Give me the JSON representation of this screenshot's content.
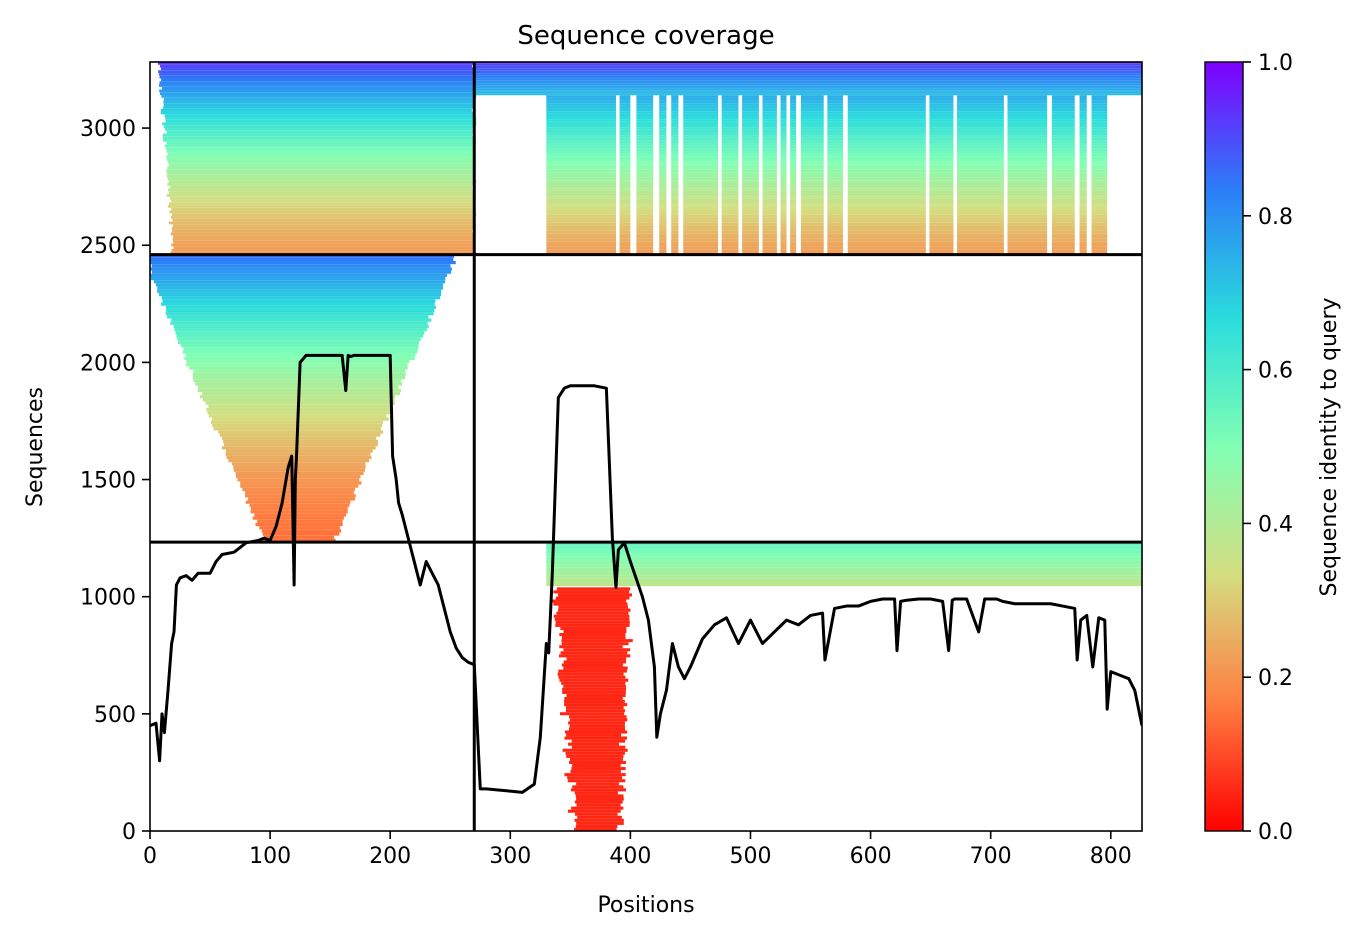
{
  "chart_data": {
    "type": "heatmap",
    "title": "Sequence coverage",
    "xlabel": "Positions",
    "ylabel": "Sequences",
    "xlim": [
      0,
      826
    ],
    "ylim": [
      0,
      3282
    ],
    "x_ticks": [
      0,
      100,
      200,
      300,
      400,
      500,
      600,
      700,
      800
    ],
    "y_ticks": [
      0,
      500,
      1000,
      1500,
      2000,
      2500,
      3000
    ],
    "grid": false,
    "colorbar": {
      "label": "Sequence identity to query",
      "range": [
        0,
        1
      ],
      "ticks": [
        "0.0",
        "0.2",
        "0.4",
        "0.6",
        "0.8",
        "1.0"
      ],
      "colormap": "rainbow_r",
      "stops": [
        "#ff0000",
        "#ff7e41",
        "#d4dd80",
        "#80ffb4",
        "#2adcdd",
        "#2c7ef7",
        "#8000ff"
      ]
    },
    "chain_boundaries_x": [
      270
    ],
    "block_boundaries_y": [
      1233,
      2460
    ],
    "blocks": [
      {
        "name": "block-a",
        "y_range": [
          2460,
          3282
        ],
        "segments": [
          [
            0,
            270
          ],
          [
            270,
            826
          ]
        ],
        "identity_top": 0.92,
        "identity_bottom": 0.22,
        "coverage_envelope": [
          [
            0,
            10
          ],
          [
            270,
            826
          ]
        ],
        "gaps_x": [
          [
            270,
            330
          ],
          [
            388,
            391
          ],
          [
            400,
            405
          ],
          [
            419,
            424
          ],
          [
            430,
            434
          ],
          [
            440,
            444
          ],
          [
            473,
            476
          ],
          [
            490,
            493
          ],
          [
            507,
            510
          ],
          [
            522,
            525
          ],
          [
            530,
            533
          ],
          [
            538,
            542
          ],
          [
            561,
            564
          ],
          [
            577,
            581
          ],
          [
            646,
            649
          ],
          [
            669,
            672
          ],
          [
            711,
            714
          ],
          [
            747,
            751
          ],
          [
            770,
            774
          ],
          [
            780,
            784
          ],
          [
            797,
            826
          ]
        ]
      },
      {
        "name": "block-b",
        "y_range": [
          1233,
          2460
        ],
        "segments": [
          [
            0,
            270
          ]
        ],
        "identity_top": 0.85,
        "identity_bottom": 0.15,
        "coverage_envelope": [
          [
            0,
            270
          ]
        ]
      },
      {
        "name": "block-c",
        "y_range": [
          0,
          1233
        ],
        "segments": [
          [
            270,
            826
          ]
        ],
        "identity_top_region": {
          "y_range": [
            1045,
            1233
          ],
          "x_range": [
            330,
            826
          ],
          "identity_top": 0.55,
          "identity_bottom": 0.38
        },
        "identity_low_region": {
          "y_range": [
            0,
            1040
          ],
          "x_range": [
            330,
            410
          ],
          "identity": 0.05
        }
      }
    ],
    "coverage_line": {
      "x": [
        0,
        5,
        8,
        10,
        12,
        15,
        18,
        20,
        22,
        25,
        30,
        35,
        40,
        45,
        50,
        55,
        60,
        70,
        80,
        90,
        95,
        100,
        105,
        110,
        115,
        118,
        120,
        121,
        122,
        125,
        130,
        140,
        150,
        160,
        163,
        165,
        167,
        170,
        180,
        190,
        200,
        202,
        205,
        207,
        210,
        215,
        220,
        225,
        230,
        235,
        240,
        245,
        250,
        255,
        260,
        265,
        270,
        275,
        280,
        290,
        300,
        310,
        320,
        325,
        330,
        332,
        335,
        340,
        345,
        350,
        360,
        370,
        380,
        385,
        388,
        390,
        395,
        400,
        410,
        415,
        420,
        422,
        425,
        430,
        435,
        440,
        445,
        450,
        460,
        470,
        480,
        490,
        500,
        510,
        520,
        530,
        540,
        550,
        560,
        562,
        570,
        580,
        590,
        600,
        610,
        620,
        622,
        625,
        630,
        640,
        650,
        660,
        665,
        668,
        670,
        680,
        690,
        695,
        700,
        705,
        710,
        720,
        730,
        740,
        750,
        760,
        770,
        772,
        775,
        780,
        785,
        790,
        795,
        797,
        800,
        805,
        810,
        815,
        820,
        826
      ],
      "y": [
        450,
        460,
        300,
        500,
        420,
        600,
        800,
        850,
        1050,
        1080,
        1090,
        1070,
        1100,
        1100,
        1100,
        1150,
        1180,
        1190,
        1230,
        1240,
        1250,
        1240,
        1300,
        1400,
        1550,
        1600,
        1050,
        1500,
        1600,
        2000,
        2030,
        2030,
        2030,
        2030,
        1880,
        2030,
        2025,
        2030,
        2030,
        2030,
        2030,
        1600,
        1500,
        1400,
        1350,
        1250,
        1150,
        1050,
        1150,
        1100,
        1050,
        950,
        850,
        780,
        740,
        720,
        710,
        180,
        180,
        175,
        170,
        165,
        200,
        400,
        800,
        760,
        1100,
        1850,
        1890,
        1900,
        1900,
        1900,
        1890,
        1250,
        1040,
        1200,
        1230,
        1150,
        1000,
        900,
        700,
        400,
        500,
        600,
        800,
        700,
        650,
        700,
        820,
        880,
        910,
        800,
        900,
        800,
        850,
        900,
        880,
        920,
        930,
        730,
        950,
        960,
        960,
        980,
        990,
        990,
        770,
        980,
        985,
        990,
        990,
        980,
        770,
        985,
        990,
        990,
        850,
        990,
        990,
        990,
        980,
        970,
        970,
        970,
        970,
        960,
        950,
        730,
        900,
        920,
        700,
        910,
        900,
        520,
        680,
        670,
        660,
        650,
        600,
        450
      ]
    }
  }
}
